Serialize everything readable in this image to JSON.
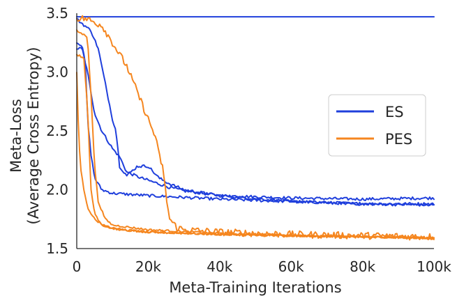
{
  "chart_data": {
    "type": "line",
    "title": "",
    "xlabel": "Meta-Training Iterations",
    "ylabel_lines": [
      "Meta-Loss",
      "(Average Cross Entropy)"
    ],
    "xlim": [
      0,
      100000
    ],
    "ylim": [
      1.5,
      3.5
    ],
    "grid": false,
    "legend_position": "center-right",
    "x_ticks": [
      {
        "value": 0,
        "label": "0"
      },
      {
        "value": 20000,
        "label": "20k"
      },
      {
        "value": 40000,
        "label": "40k"
      },
      {
        "value": 60000,
        "label": "60k"
      },
      {
        "value": 80000,
        "label": "80k"
      },
      {
        "value": 100000,
        "label": "100k"
      }
    ],
    "y_ticks": [
      {
        "value": 1.5,
        "label": "1.5"
      },
      {
        "value": 2.0,
        "label": "2.0"
      },
      {
        "value": 2.5,
        "label": "2.5"
      },
      {
        "value": 3.0,
        "label": "3.0"
      },
      {
        "value": 3.5,
        "label": "3.5"
      }
    ],
    "legend": [
      {
        "name": "ES",
        "color": "#1f3fdc"
      },
      {
        "name": "PES",
        "color": "#f5861f"
      }
    ],
    "series": [
      {
        "name": "ES",
        "color": "#1f3fdc",
        "noise": 0,
        "points": [
          [
            0,
            3.47
          ],
          [
            100000,
            3.47
          ]
        ]
      },
      {
        "name": "ES",
        "color": "#1f3fdc",
        "noise": 0.012,
        "points": [
          [
            0,
            3.2
          ],
          [
            1500,
            3.2
          ],
          [
            3000,
            3.0
          ],
          [
            5000,
            2.65
          ],
          [
            7000,
            2.5
          ],
          [
            10000,
            2.35
          ],
          [
            12000,
            2.28
          ],
          [
            14000,
            2.15
          ],
          [
            18000,
            2.1
          ],
          [
            22000,
            2.06
          ],
          [
            26000,
            2.02
          ],
          [
            30000,
            1.99
          ],
          [
            40000,
            1.95
          ],
          [
            60000,
            1.93
          ],
          [
            80000,
            1.92
          ],
          [
            100000,
            1.93
          ]
        ]
      },
      {
        "name": "ES",
        "color": "#1f3fdc",
        "noise": 0.012,
        "points": [
          [
            0,
            3.25
          ],
          [
            1500,
            3.23
          ],
          [
            2500,
            3.05
          ],
          [
            3000,
            2.6
          ],
          [
            4000,
            2.3
          ],
          [
            5000,
            2.1
          ],
          [
            7000,
            2.0
          ],
          [
            10000,
            1.97
          ],
          [
            20000,
            1.95
          ],
          [
            40000,
            1.92
          ],
          [
            60000,
            1.9
          ],
          [
            80000,
            1.88
          ],
          [
            100000,
            1.88
          ]
        ]
      },
      {
        "name": "ES",
        "color": "#1f3fdc",
        "noise": 0.012,
        "points": [
          [
            0,
            3.45
          ],
          [
            2000,
            3.4
          ],
          [
            4000,
            3.35
          ],
          [
            6000,
            3.2
          ],
          [
            8000,
            2.9
          ],
          [
            9000,
            2.75
          ],
          [
            10000,
            2.6
          ],
          [
            11000,
            2.5
          ],
          [
            12000,
            2.2
          ],
          [
            14000,
            2.12
          ],
          [
            17000,
            2.2
          ],
          [
            20000,
            2.2
          ],
          [
            23000,
            2.1
          ],
          [
            26000,
            2.05
          ],
          [
            30000,
            2.0
          ],
          [
            40000,
            1.95
          ],
          [
            60000,
            1.9
          ],
          [
            80000,
            1.88
          ],
          [
            100000,
            1.87
          ]
        ]
      },
      {
        "name": "PES",
        "color": "#f5861f",
        "noise": 0.008,
        "points": [
          [
            0,
            3.0
          ],
          [
            500,
            2.5
          ],
          [
            1000,
            2.2
          ],
          [
            2000,
            2.0
          ],
          [
            3000,
            1.85
          ],
          [
            5000,
            1.75
          ],
          [
            8000,
            1.69
          ],
          [
            12000,
            1.66
          ],
          [
            20000,
            1.64
          ],
          [
            40000,
            1.62
          ],
          [
            60000,
            1.61
          ],
          [
            80000,
            1.6
          ],
          [
            100000,
            1.59
          ]
        ]
      },
      {
        "name": "PES",
        "color": "#f5861f",
        "noise": 0.008,
        "points": [
          [
            0,
            3.15
          ],
          [
            2000,
            3.12
          ],
          [
            3000,
            2.7
          ],
          [
            4000,
            2.0
          ],
          [
            5000,
            1.8
          ],
          [
            7000,
            1.7
          ],
          [
            10000,
            1.67
          ],
          [
            20000,
            1.64
          ],
          [
            40000,
            1.62
          ],
          [
            60000,
            1.61
          ],
          [
            80000,
            1.6
          ],
          [
            100000,
            1.59
          ]
        ]
      },
      {
        "name": "PES",
        "color": "#f5861f",
        "noise": 0.008,
        "points": [
          [
            0,
            3.35
          ],
          [
            3000,
            3.3
          ],
          [
            4000,
            2.8
          ],
          [
            5000,
            2.2
          ],
          [
            6000,
            1.9
          ],
          [
            8000,
            1.75
          ],
          [
            10000,
            1.7
          ],
          [
            20000,
            1.66
          ],
          [
            40000,
            1.63
          ],
          [
            60000,
            1.61
          ],
          [
            80000,
            1.6
          ],
          [
            100000,
            1.59
          ]
        ]
      },
      {
        "name": "PES",
        "color": "#f5861f",
        "noise": 0.03,
        "points": [
          [
            0,
            3.46
          ],
          [
            3000,
            3.45
          ],
          [
            5000,
            3.42
          ],
          [
            7000,
            3.4
          ],
          [
            8000,
            3.35
          ],
          [
            10000,
            3.25
          ],
          [
            12000,
            3.15
          ],
          [
            14000,
            3.05
          ],
          [
            16000,
            2.9
          ],
          [
            18000,
            2.75
          ],
          [
            20000,
            2.6
          ],
          [
            22000,
            2.45
          ],
          [
            23000,
            2.3
          ],
          [
            24000,
            2.2
          ],
          [
            25000,
            1.95
          ],
          [
            26000,
            1.75
          ],
          [
            28000,
            1.68
          ],
          [
            30000,
            1.66
          ],
          [
            40000,
            1.64
          ],
          [
            60000,
            1.62
          ],
          [
            80000,
            1.61
          ],
          [
            100000,
            1.6
          ]
        ]
      }
    ]
  }
}
